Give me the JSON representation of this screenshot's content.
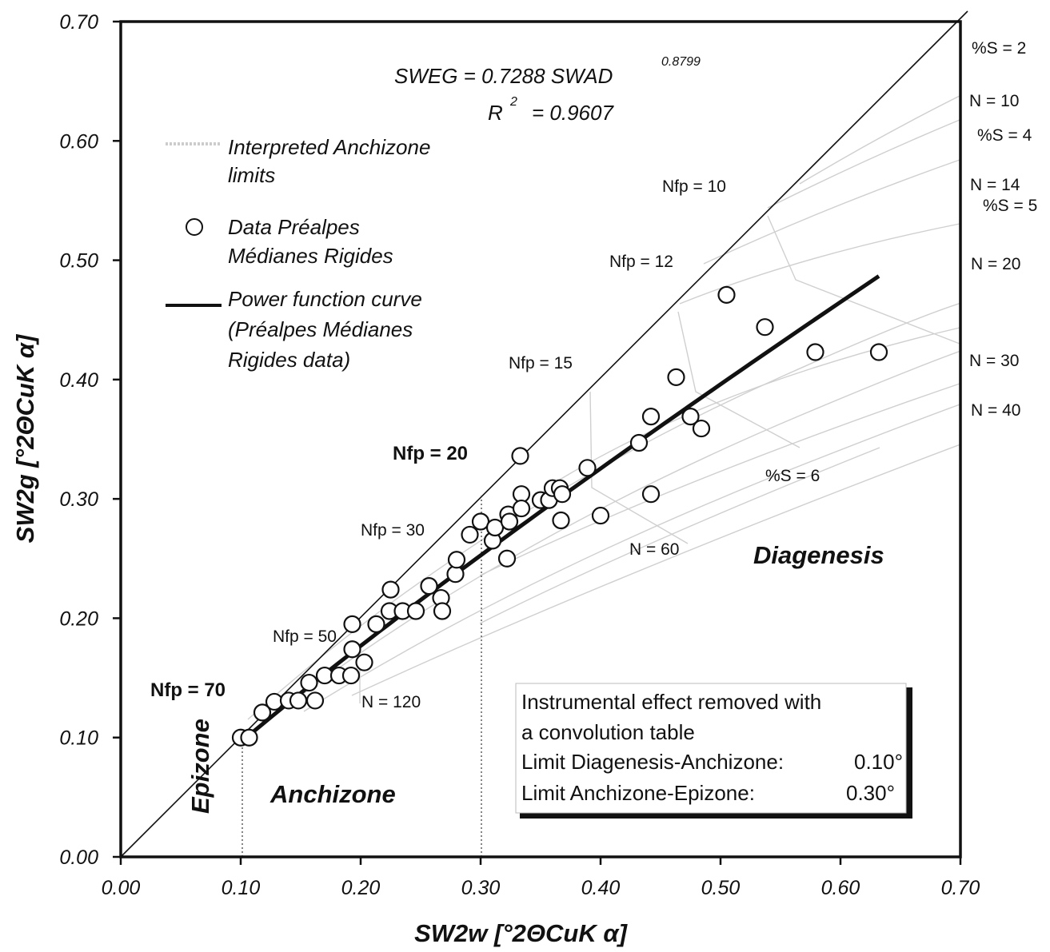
{
  "chart_data": {
    "type": "scatter",
    "xlabel": "SW2w [°2ΘCuK α]",
    "ylabel": "SW2g [°2ΘCuK α]",
    "xlim": [
      0,
      0.7
    ],
    "ylim": [
      0,
      0.7
    ],
    "x_ticks": [
      "0.00",
      "0.10",
      "0.20",
      "0.30",
      "0.40",
      "0.50",
      "0.60",
      "0.70"
    ],
    "y_ticks": [
      "0.00",
      "0.10",
      "0.20",
      "0.30",
      "0.40",
      "0.50",
      "0.60",
      "0.70"
    ],
    "grid": false,
    "equation": {
      "main": "SWEG = 0.7288 SWAD",
      "exponent": "0.8799",
      "r_label": "R",
      "r_exp": "2",
      "r_value": "= 0.9607"
    },
    "legend": [
      {
        "label_lines": [
          "Interpreted Anchizone",
          "limits"
        ],
        "marker": "hatched-line"
      },
      {
        "label_lines": [
          "Data Préalpes",
          "Médianes Rigides"
        ],
        "marker": "circle"
      },
      {
        "label_lines": [
          "Power function curve",
          "(Préalpes Médianes",
          "Rigides data)"
        ],
        "marker": "thick-line"
      }
    ],
    "series": [
      {
        "name": "Data Préalpes Médianes Rigides",
        "points": [
          [
            0.1,
            0.1
          ],
          [
            0.107,
            0.1
          ],
          [
            0.118,
            0.121
          ],
          [
            0.128,
            0.13
          ],
          [
            0.14,
            0.131
          ],
          [
            0.148,
            0.131
          ],
          [
            0.157,
            0.146
          ],
          [
            0.162,
            0.131
          ],
          [
            0.17,
            0.152
          ],
          [
            0.182,
            0.152
          ],
          [
            0.192,
            0.152
          ],
          [
            0.193,
            0.174
          ],
          [
            0.193,
            0.195
          ],
          [
            0.203,
            0.163
          ],
          [
            0.213,
            0.195
          ],
          [
            0.224,
            0.206
          ],
          [
            0.225,
            0.224
          ],
          [
            0.235,
            0.206
          ],
          [
            0.246,
            0.206
          ],
          [
            0.257,
            0.227
          ],
          [
            0.267,
            0.217
          ],
          [
            0.268,
            0.206
          ],
          [
            0.279,
            0.237
          ],
          [
            0.28,
            0.249
          ],
          [
            0.291,
            0.27
          ],
          [
            0.3,
            0.281
          ],
          [
            0.31,
            0.265
          ],
          [
            0.312,
            0.276
          ],
          [
            0.322,
            0.25
          ],
          [
            0.323,
            0.287
          ],
          [
            0.324,
            0.281
          ],
          [
            0.333,
            0.336
          ],
          [
            0.334,
            0.304
          ],
          [
            0.334,
            0.292
          ],
          [
            0.35,
            0.299
          ],
          [
            0.357,
            0.299
          ],
          [
            0.36,
            0.309
          ],
          [
            0.366,
            0.309
          ],
          [
            0.367,
            0.282
          ],
          [
            0.368,
            0.304
          ],
          [
            0.389,
            0.326
          ],
          [
            0.4,
            0.286
          ],
          [
            0.432,
            0.347
          ],
          [
            0.442,
            0.304
          ],
          [
            0.442,
            0.369
          ],
          [
            0.463,
            0.402
          ],
          [
            0.475,
            0.369
          ],
          [
            0.484,
            0.359
          ],
          [
            0.505,
            0.471
          ],
          [
            0.537,
            0.444
          ],
          [
            0.579,
            0.423
          ],
          [
            0.632,
            0.423
          ]
        ]
      }
    ],
    "power_fit": {
      "a": 0.7288,
      "b": 0.8799,
      "x_range": [
        0.1,
        0.632
      ]
    },
    "anchizone_limits_x": [
      0.1,
      0.3
    ]
  },
  "annotations": {
    "nfp": [
      "Nfp = 10",
      "Nfp = 12",
      "Nfp = 15",
      "Nfp = 20",
      "Nfp = 30",
      "Nfp = 50",
      "Nfp = 70"
    ],
    "right_labels": [
      "%S = 2",
      "N = 10",
      "%S = 4",
      "N = 14",
      "%S = 5",
      "N = 20",
      "N = 30",
      "N = 40"
    ],
    "inner": [
      "%S = 6",
      "N = 60",
      "N = 120"
    ],
    "zones": [
      "Diagenesis",
      "Anchizone",
      "Epizone"
    ]
  },
  "info_box": {
    "lines": [
      "Instrumental effect removed with",
      "a convolution table"
    ],
    "limits": [
      {
        "label": "Limit Diagenesis-Anchizone:",
        "value": "0.10°"
      },
      {
        "label": "Limit Anchizone-Epizone:",
        "value": "0.30°"
      }
    ]
  }
}
